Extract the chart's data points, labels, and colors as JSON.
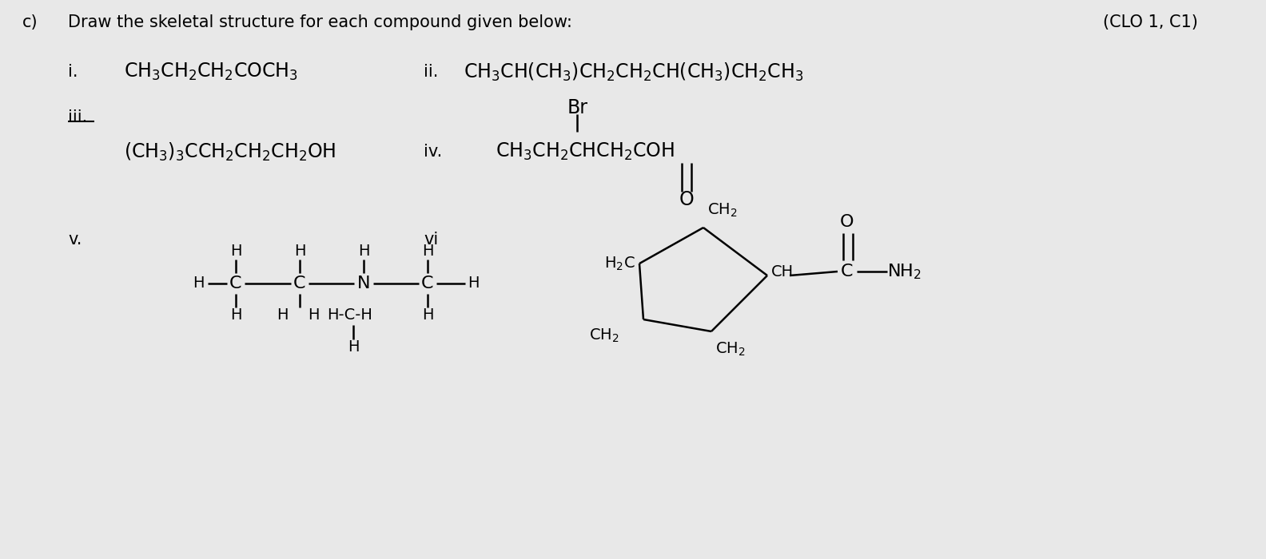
{
  "bg_color": "#e8e8e8",
  "font_size": 14,
  "font_family": "DejaVu Sans",
  "title_c": "c)",
  "title_text": "Draw the skeletal structure for each compound given below:",
  "title_right": "(CLO 1, C1)"
}
